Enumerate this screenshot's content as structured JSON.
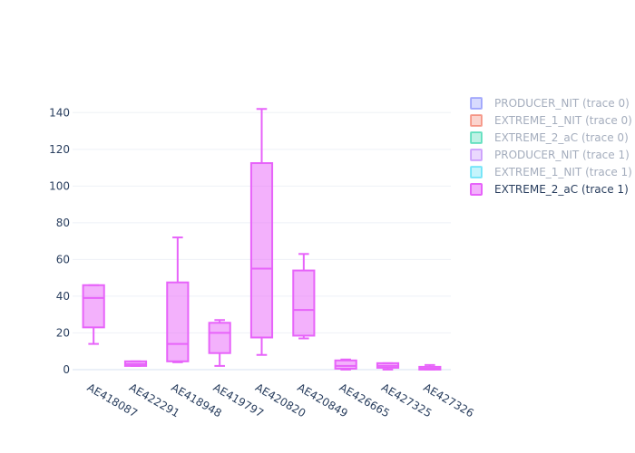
{
  "chart_data": {
    "type": "box",
    "title": "",
    "xlabel": "",
    "ylabel": "",
    "ylim": [
      -2,
      152
    ],
    "yticks": [
      0,
      20,
      40,
      60,
      80,
      100,
      120,
      140
    ],
    "grid": true,
    "legend_position": "top-right",
    "categories": [
      "AE418087",
      "AE422291",
      "AE418948",
      "AE419797",
      "AE420820",
      "AE420849",
      "AE426665",
      "AE427325",
      "AE427326"
    ],
    "box_color": "#e763fa",
    "series": [
      {
        "name": "PRODUCER_NIT (trace 0)",
        "color": "#636efa",
        "faded": true
      },
      {
        "name": "EXTREME_1_NIT (trace 0)",
        "color": "#ef553b",
        "faded": true
      },
      {
        "name": "EXTREME_2_aC (trace 0)",
        "color": "#00cc96",
        "faded": true
      },
      {
        "name": "PRODUCER_NIT (trace 1)",
        "color": "#ab63fa",
        "faded": true
      },
      {
        "name": "EXTREME_1_NIT (trace 1)",
        "color": "#19d3f3",
        "faded": true
      },
      {
        "name": "EXTREME_2_aC (trace 1)",
        "color": "#e763fa",
        "faded": false,
        "boxes": [
          {
            "category": "AE418087",
            "min": 14,
            "q1": 23,
            "median": 39,
            "q3": 46,
            "max": 46
          },
          {
            "category": "AE422291",
            "min": 2,
            "q1": 2,
            "median": 3,
            "q3": 4.5,
            "max": 4.5
          },
          {
            "category": "AE418948",
            "min": 4,
            "q1": 4.5,
            "median": 14,
            "q3": 47.5,
            "max": 72
          },
          {
            "category": "AE419797",
            "min": 2,
            "q1": 9,
            "median": 20,
            "q3": 25.5,
            "max": 27
          },
          {
            "category": "AE420820",
            "min": 8,
            "q1": 17.5,
            "median": 55,
            "q3": 112.5,
            "max": 142
          },
          {
            "category": "AE420849",
            "min": 17,
            "q1": 18.5,
            "median": 32.5,
            "q3": 54,
            "max": 63
          },
          {
            "category": "AE426665",
            "min": 0,
            "q1": 0.5,
            "median": 2,
            "q3": 5,
            "max": 5.5
          },
          {
            "category": "AE427325",
            "min": 0,
            "q1": 1,
            "median": 2,
            "q3": 3.5,
            "max": 3.5
          },
          {
            "category": "AE427326",
            "min": 0,
            "q1": 0,
            "median": 0.5,
            "q3": 1.5,
            "max": 2.5
          }
        ]
      }
    ]
  }
}
